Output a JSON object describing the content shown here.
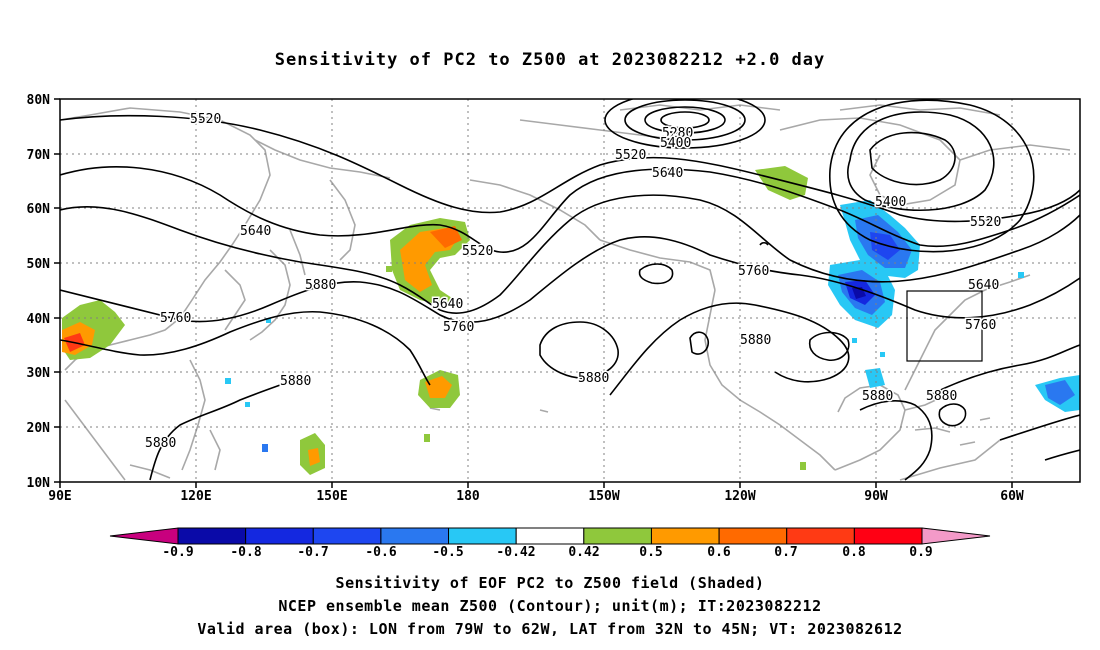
{
  "title": "Sensitivity of PC2 to Z500 at 2023082212 +2.0 day",
  "lat_labels": [
    "80N",
    "70N",
    "60N",
    "50N",
    "40N",
    "30N",
    "20N",
    "10N"
  ],
  "lon_labels": [
    "90E",
    "120E",
    "150E",
    "180",
    "150W",
    "120W",
    "90W",
    "60W"
  ],
  "contour_labels": [
    "5520",
    "5640",
    "5880",
    "5760",
    "5520",
    "5640",
    "5760",
    "5280",
    "5400",
    "5520",
    "5640",
    "5880",
    "5760",
    "5880",
    "5880",
    "5400",
    "5520",
    "5640",
    "5760",
    "5880",
    "5880"
  ],
  "colorbar": {
    "labels": [
      "-0.9",
      "-0.8",
      "-0.7",
      "-0.6",
      "-0.5",
      "-0.42",
      "0.42",
      "0.5",
      "0.6",
      "0.7",
      "0.8",
      "0.9"
    ],
    "colors": [
      "#c8007e",
      "#0a0aa8",
      "#1428e0",
      "#1e46f0",
      "#2a78f0",
      "#28c8f5",
      "#ffffff",
      "#8fc83c",
      "#ff9a00",
      "#ff6a00",
      "#ff3a14",
      "#ff0014",
      "#f39ac8"
    ]
  },
  "box": {
    "lon": [
      -79,
      -62
    ],
    "lat": [
      32,
      45
    ]
  },
  "captions": [
    "Sensitivity of EOF PC2 to Z500 field (Shaded)",
    "NCEP ensemble mean Z500 (Contour); unit(m); IT:2023082212",
    "Valid area (box): LON from 79W to 62W, LAT from 32N to 45N; VT: 2023082612"
  ]
}
